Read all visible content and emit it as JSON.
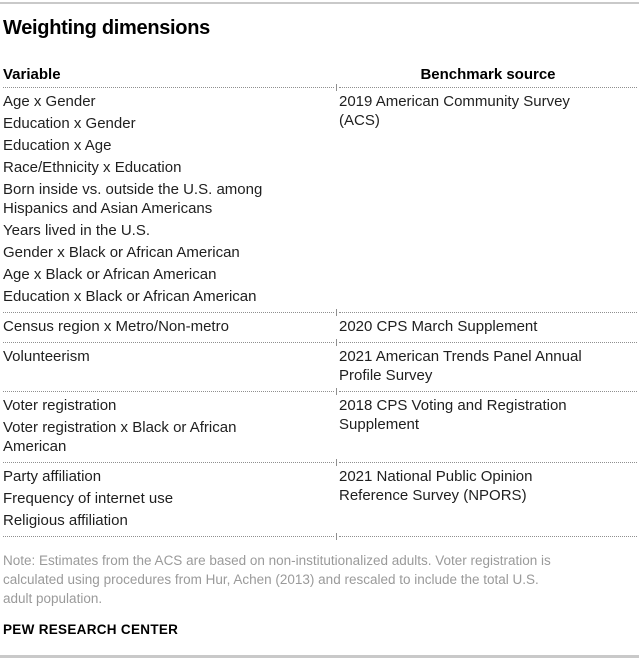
{
  "title": "Weighting dimensions",
  "table": {
    "columns": {
      "variable": "Variable",
      "benchmark": "Benchmark source"
    },
    "groups": [
      {
        "variables": [
          "Age x Gender",
          "Education x Gender",
          "Education x Age",
          "Race/Ethnicity x Education",
          "Born inside vs. outside the U.S. among\nHispanics and Asian Americans",
          "Years lived in the U.S.",
          "Gender x Black or African American",
          "Age x Black or African American",
          "Education x Black or African American"
        ],
        "benchmark": "2019 American Community Survey\n(ACS)"
      },
      {
        "variables": [
          "Census region x Metro/Non-metro"
        ],
        "benchmark": "2020 CPS March Supplement"
      },
      {
        "variables": [
          "Volunteerism"
        ],
        "benchmark": "2021 American Trends Panel Annual\nProfile Survey"
      },
      {
        "variables": [
          "Voter registration",
          "Voter registration x Black or African\nAmerican"
        ],
        "benchmark": "2018 CPS Voting and Registration\nSupplement"
      },
      {
        "variables": [
          "Party affiliation",
          "Frequency of internet use",
          "Religious affiliation"
        ],
        "benchmark": "2021 National Public Opinion\nReference Survey (NPORS)"
      }
    ]
  },
  "note": "Note: Estimates from the ACS are based on non-institutionalized adults. Voter registration is\ncalculated using procedures from Hur, Achen (2013) and rescaled to include the total U.S.\nadult population.",
  "footer": "PEW RESEARCH CENTER",
  "colors": {
    "text": "#1f1f1f",
    "note_text": "#9a9a9a",
    "solid_rule": "#c9c9c9",
    "dotted_rule": "#8f8f8f"
  }
}
